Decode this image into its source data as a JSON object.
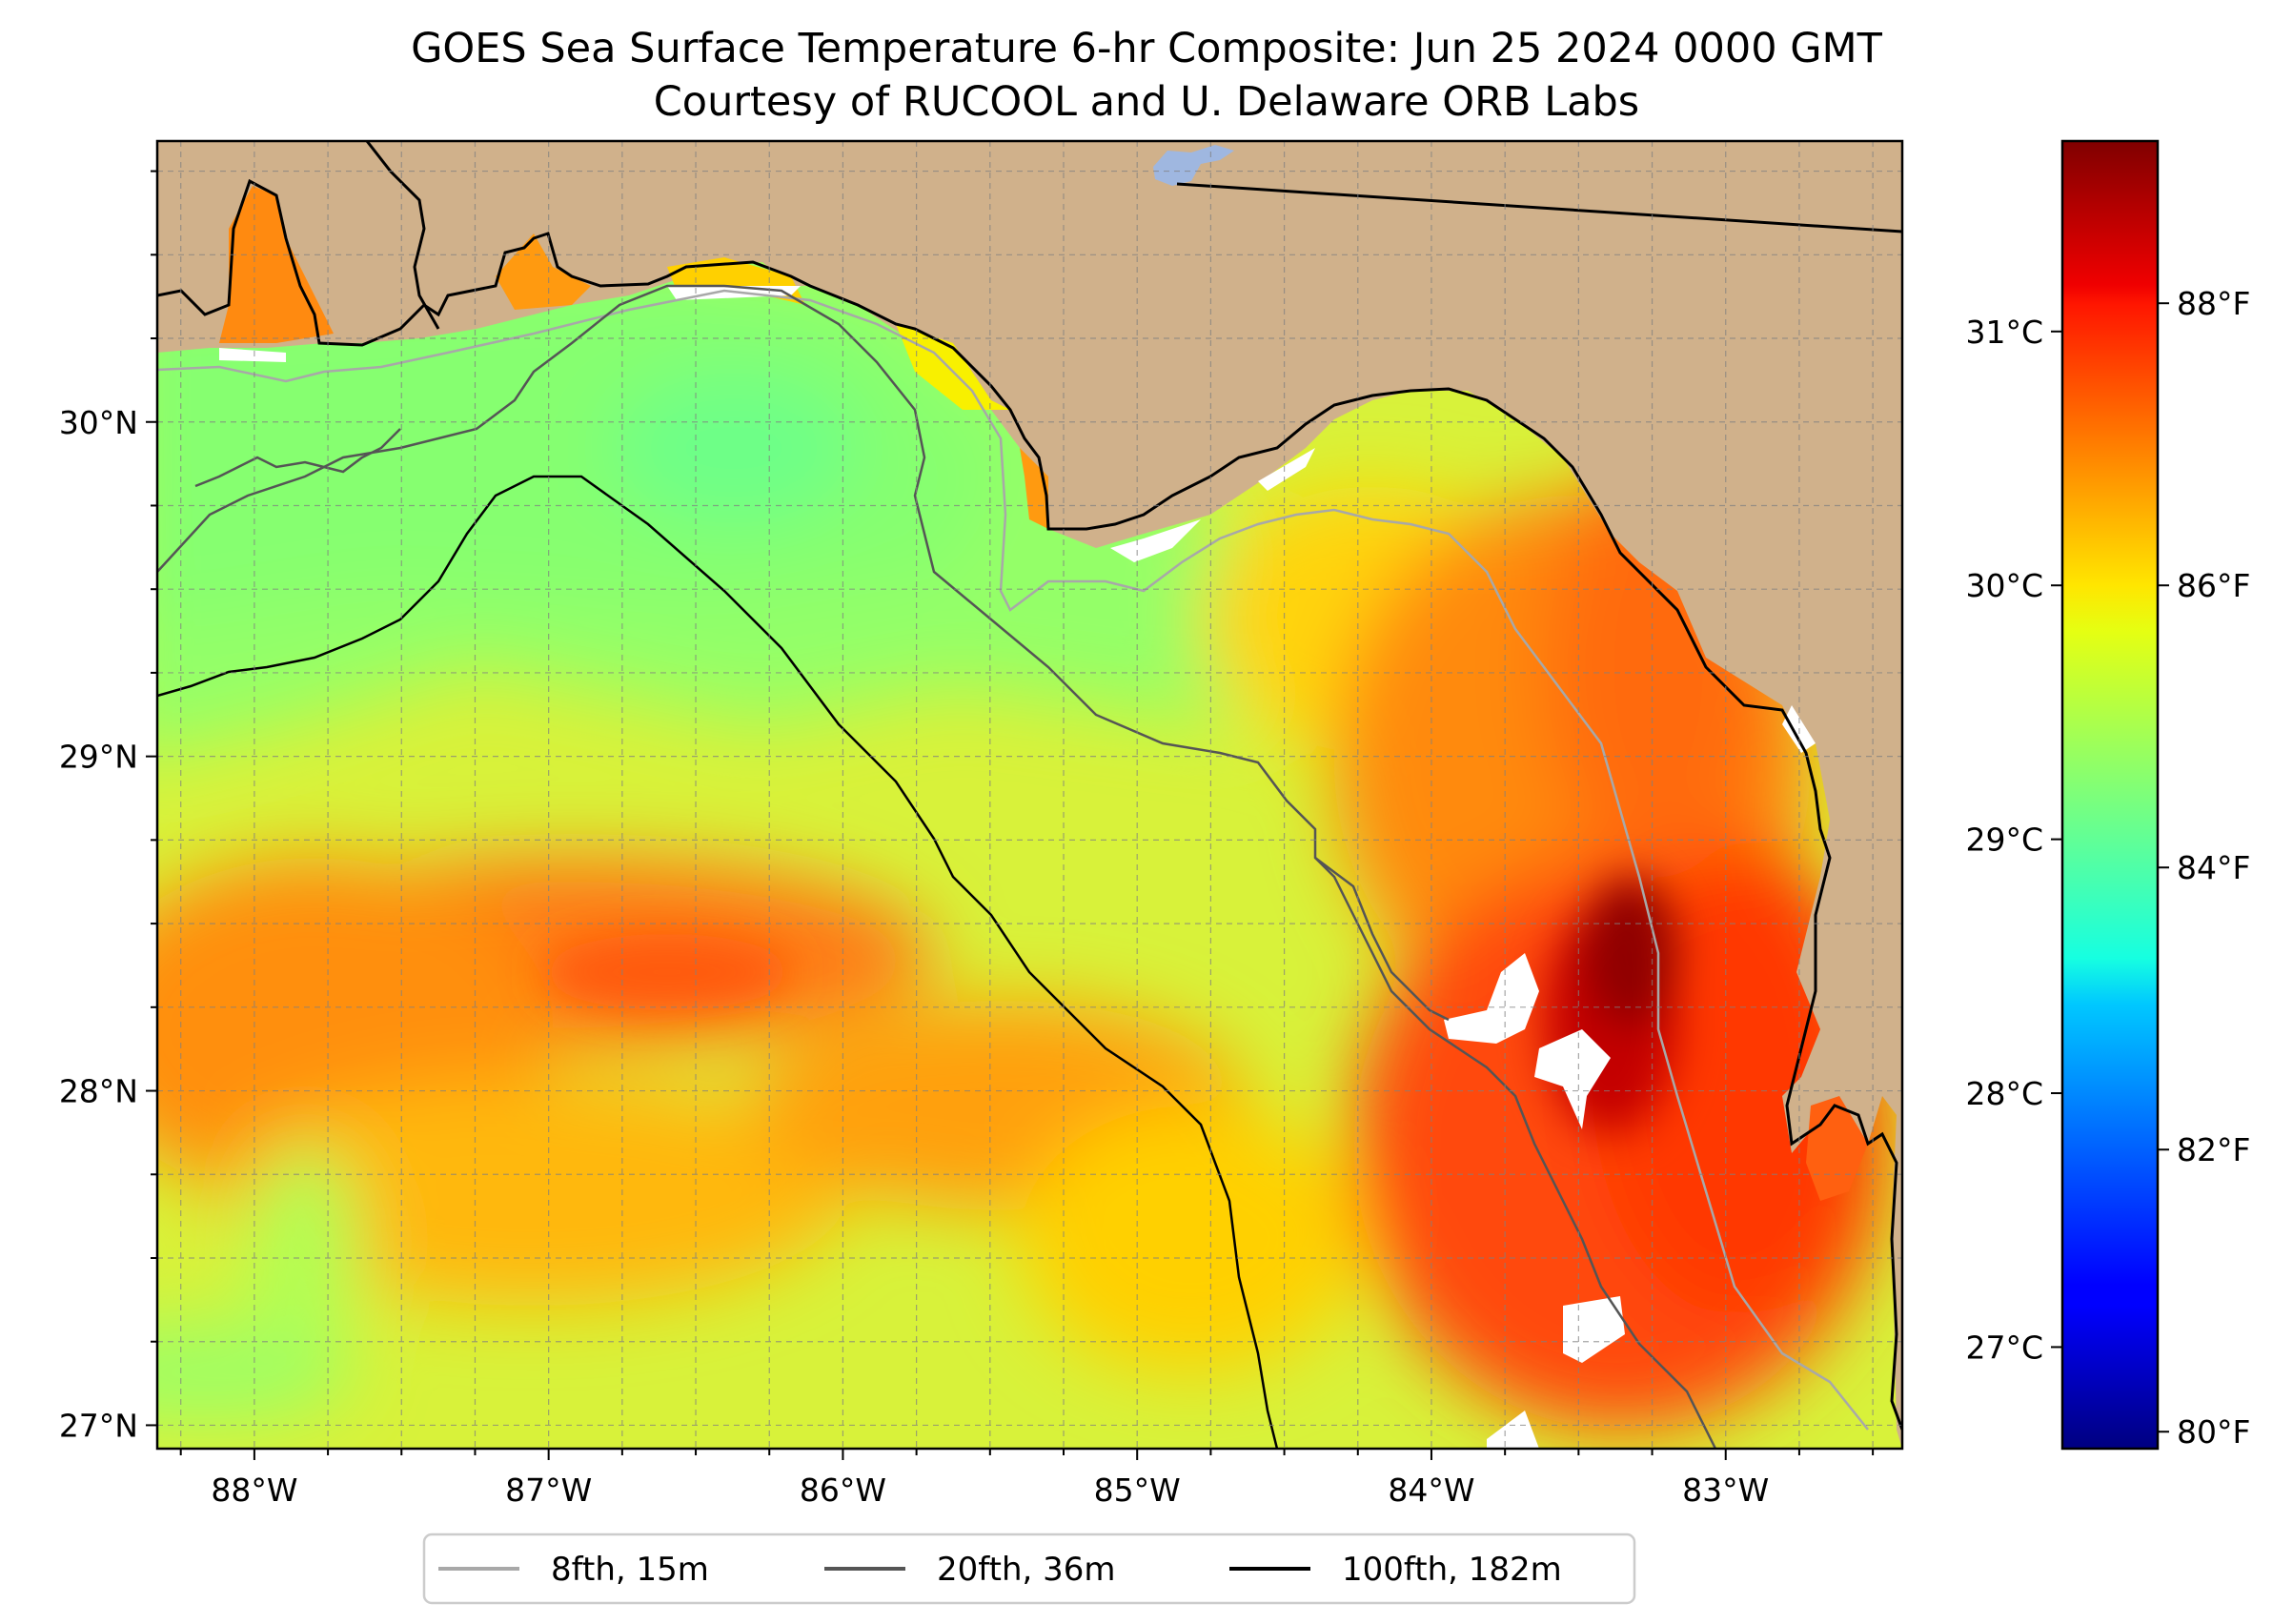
{
  "title": {
    "line1": "GOES Sea Surface Temperature 6-hr Composite: Jun 25 2024 0000 GMT",
    "line2": "Courtesy of RUCOOL and U. Delaware ORB Labs"
  },
  "map": {
    "extent": {
      "lon_min": -88.33,
      "lon_max": -82.4,
      "lat_min": 26.93,
      "lat_max": 30.84
    },
    "longitude_ticks": [
      {
        "value": -88,
        "label": "88°W"
      },
      {
        "value": -87,
        "label": "87°W"
      },
      {
        "value": -86,
        "label": "86°W"
      },
      {
        "value": -85,
        "label": "85°W"
      },
      {
        "value": -84,
        "label": "84°W"
      },
      {
        "value": -83,
        "label": "83°W"
      }
    ],
    "latitude_ticks": [
      {
        "value": 30,
        "label": "30°N"
      },
      {
        "value": 29,
        "label": "29°N"
      },
      {
        "value": 28,
        "label": "28°N"
      },
      {
        "value": 27,
        "label": "27°N"
      }
    ],
    "grid": "dashed, every 0.25°",
    "colors": {
      "land": "#d0b18b",
      "water": "#9fb7e0",
      "no_data": "#ffffff",
      "coastline": "#000000"
    }
  },
  "colorbar": {
    "colormap": "jet",
    "range_c": [
      26.6,
      31.75
    ],
    "celsius_ticks": [
      {
        "value": 31,
        "label": "31°C"
      },
      {
        "value": 30,
        "label": "30°C"
      },
      {
        "value": 29,
        "label": "29°C"
      },
      {
        "value": 28,
        "label": "28°C"
      },
      {
        "value": 27,
        "label": "27°C"
      }
    ],
    "fahrenheit_ticks": [
      {
        "value": 88,
        "label": "88°F"
      },
      {
        "value": 86,
        "label": "86°F"
      },
      {
        "value": 84,
        "label": "84°F"
      },
      {
        "value": 82,
        "label": "82°F"
      },
      {
        "value": 80,
        "label": "80°F"
      }
    ]
  },
  "legend": {
    "items": [
      {
        "label": "8fth, 15m",
        "color": "#a8a8a8"
      },
      {
        "label": "20fth, 36m",
        "color": "#555555"
      },
      {
        "label": "100fth, 182m",
        "color": "#000000"
      }
    ]
  }
}
